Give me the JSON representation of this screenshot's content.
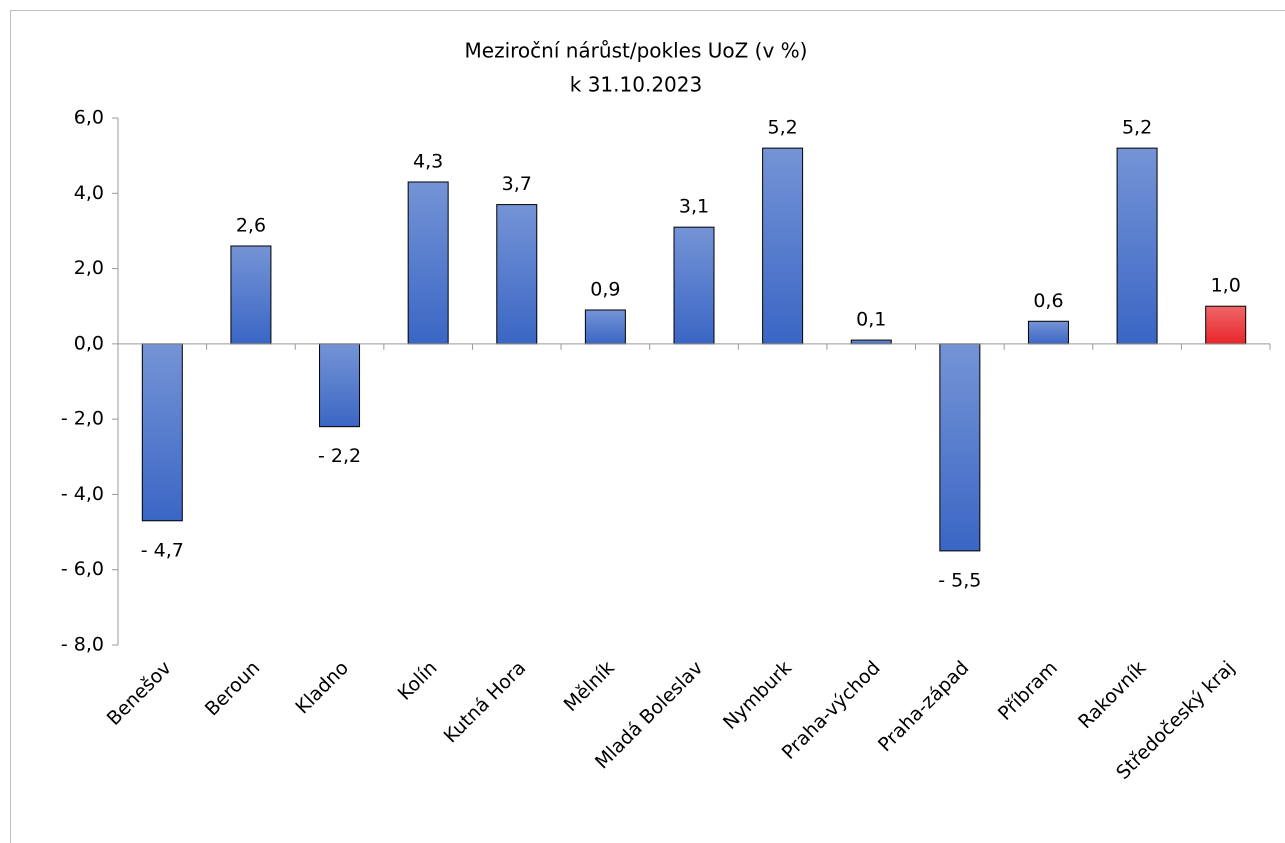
{
  "chart_data": {
    "type": "bar",
    "title": "Meziroční nárůst/pokles UoZ (v %)",
    "subtitle": "k 31.10.2023",
    "categories": [
      "Benešov",
      "Beroun",
      "Kladno",
      "Kolín",
      "Kutná Hora",
      "Mělník",
      "Mladá Boleslav",
      "Nymburk",
      "Praha-východ",
      "Praha-západ",
      "Příbram",
      "Rakovník",
      "Středočeský kraj"
    ],
    "values": [
      -4.7,
      2.6,
      -2.2,
      4.3,
      3.7,
      0.9,
      3.1,
      5.2,
      0.1,
      -5.5,
      0.6,
      5.2,
      1.0
    ],
    "value_labels": [
      "- 4,7",
      "2,6",
      "- 2,2",
      "4,3",
      "3,7",
      "0,9",
      "3,1",
      "5,2",
      "0,1",
      "- 5,5",
      "0,6",
      "5,2",
      "1,0"
    ],
    "colors": [
      "#3a66c4",
      "#3a66c4",
      "#3a66c4",
      "#3a66c4",
      "#3a66c4",
      "#3a66c4",
      "#3a66c4",
      "#3a66c4",
      "#3a66c4",
      "#3a66c4",
      "#3a66c4",
      "#3a66c4",
      "#e8262a"
    ],
    "ylim": [
      -8,
      6
    ],
    "yticks": [
      {
        "value": -8,
        "label": "- 8,0"
      },
      {
        "value": -6,
        "label": "- 6,0"
      },
      {
        "value": -4,
        "label": "- 4,0"
      },
      {
        "value": -2,
        "label": "- 2,0"
      },
      {
        "value": 0,
        "label": "0,0"
      },
      {
        "value": 2,
        "label": "2,0"
      },
      {
        "value": 4,
        "label": "4,0"
      },
      {
        "value": 6,
        "label": "6,0"
      }
    ],
    "grid": false
  }
}
